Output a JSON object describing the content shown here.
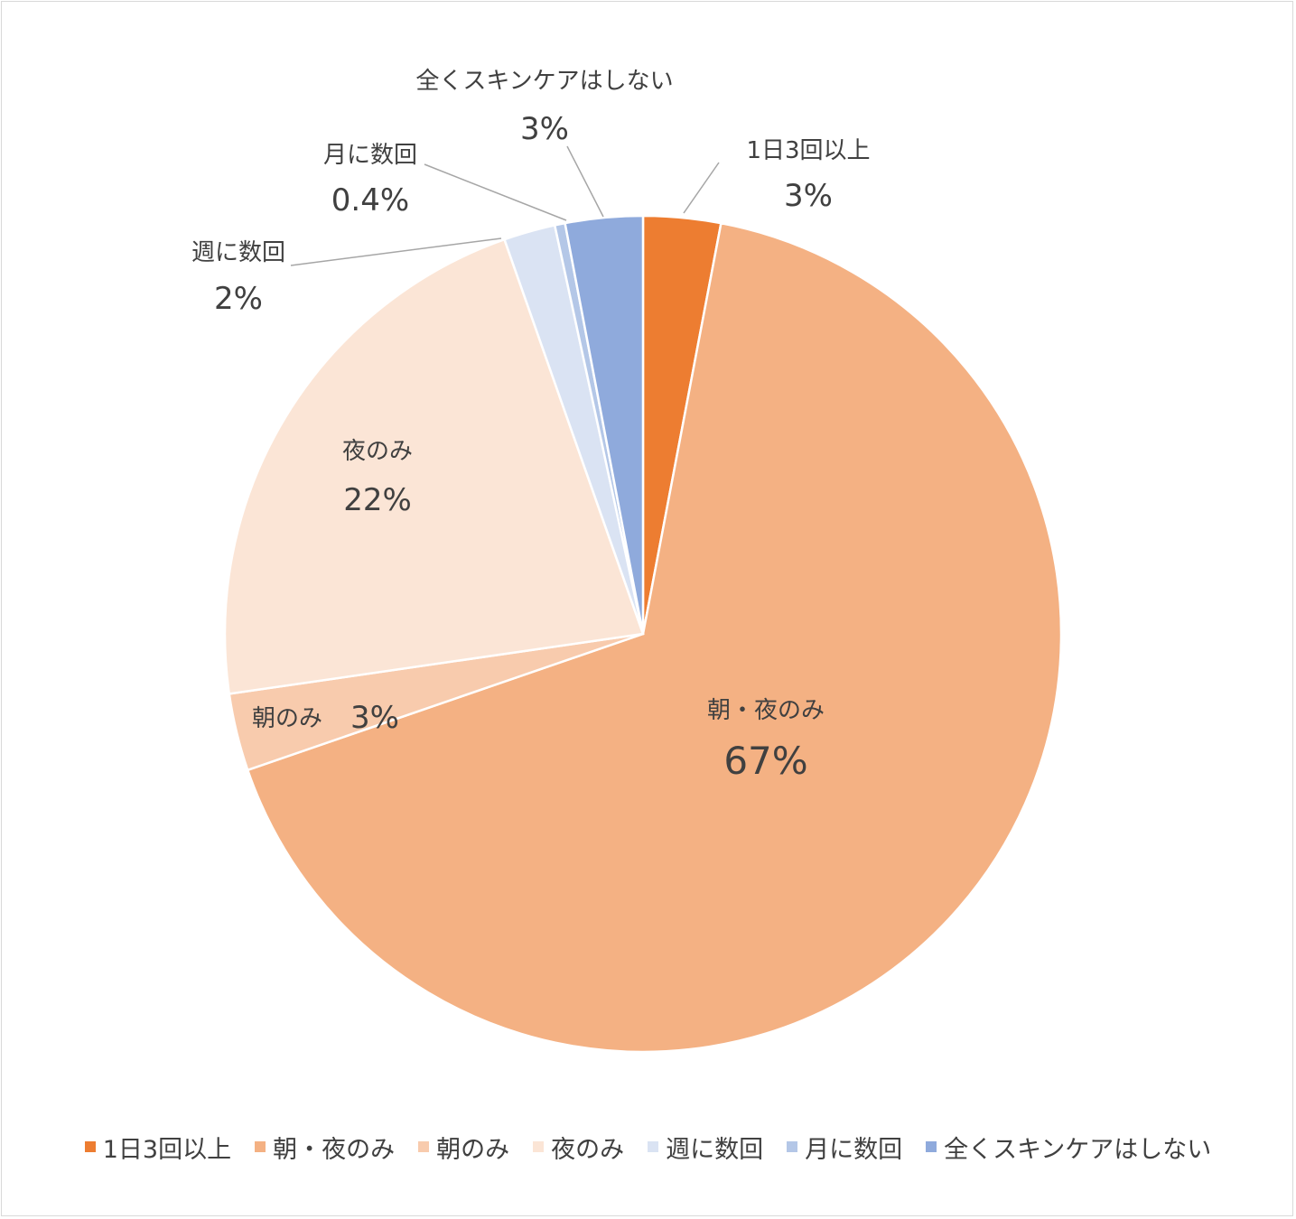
{
  "chart_data": {
    "type": "pie",
    "categories": [
      "1日3回以上",
      "朝・夜のみ",
      "朝のみ",
      "夜のみ",
      "週に数回",
      "月に数回",
      "全くスキンケアはしない"
    ],
    "values": [
      3,
      67,
      3,
      22,
      2,
      0.4,
      3
    ],
    "data_labels": [
      "3%",
      "67%",
      "3%",
      "22%",
      "2%",
      "0.4%",
      "3%"
    ],
    "colors": [
      "#ED7D31",
      "#F4B183",
      "#F8CBAD",
      "#FBE5D6",
      "#DAE3F3",
      "#B4C7E7",
      "#8FAADC"
    ],
    "legend_position": "bottom"
  }
}
